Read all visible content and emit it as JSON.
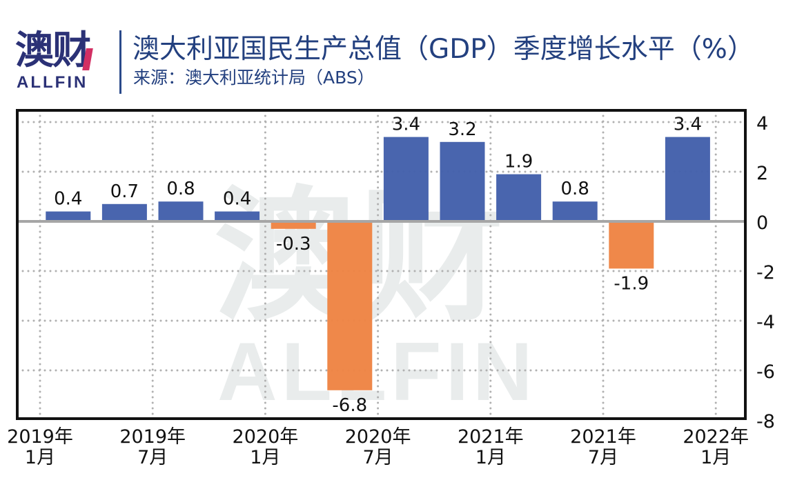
{
  "header": {
    "logo_cn": "澳财",
    "logo_en": "ALLFIN",
    "title": "澳大利亚国民生产总值（GDP）季度增长水平（%）",
    "subtitle": "来源：澳大利亚统计局（ABS）"
  },
  "watermark": {
    "cn": "澳财",
    "en": "ALLFIN"
  },
  "colors": {
    "positive": "#4360ab",
    "negative": "#ee8444",
    "zero_line": "#a6a6a6",
    "grid": "#b0b0b0",
    "frame": "#111111",
    "title": "#23407f",
    "logo": "#2b3176",
    "logo_accent": "#d22f63"
  },
  "chart_data": {
    "type": "bar",
    "title": "澳大利亚国民生产总值（GDP）季度增长水平（%）",
    "source": "来源：澳大利亚统计局（ABS）",
    "xlabel": "",
    "ylabel": "",
    "categories": [
      "2019Q1",
      "2019Q2",
      "2019Q3",
      "2019Q4",
      "2020Q1",
      "2020Q2",
      "2020Q3",
      "2020Q4",
      "2021Q1",
      "2021Q2",
      "2021Q3",
      "2021Q4"
    ],
    "values": [
      0.4,
      0.7,
      0.8,
      0.4,
      -0.3,
      -6.8,
      3.4,
      3.2,
      1.9,
      0.8,
      -1.9,
      3.4
    ],
    "data_labels": [
      "0.4",
      "0.7",
      "0.8",
      "0.4",
      "-0.3",
      "-6.8",
      "3.4",
      "3.2",
      "1.9",
      "0.8",
      "-1.9",
      "3.4"
    ],
    "x_tick_labels": [
      {
        "line1": "2019年",
        "line2": "1月",
        "boundary": 0
      },
      {
        "line1": "2019年",
        "line2": "7月",
        "boundary": 2
      },
      {
        "line1": "2020年",
        "line2": "1月",
        "boundary": 4
      },
      {
        "line1": "2020年",
        "line2": "7月",
        "boundary": 6
      },
      {
        "line1": "2021年",
        "line2": "1月",
        "boundary": 8
      },
      {
        "line1": "2021年",
        "line2": "7月",
        "boundary": 10
      },
      {
        "line1": "2022年",
        "line2": "1月",
        "boundary": 12
      }
    ],
    "yticks": [
      4,
      2,
      0,
      -2,
      -4,
      -6,
      -8
    ],
    "ylim": [
      -8,
      4.5
    ],
    "y_axis_side": "right",
    "grid": true,
    "legend": "none"
  }
}
